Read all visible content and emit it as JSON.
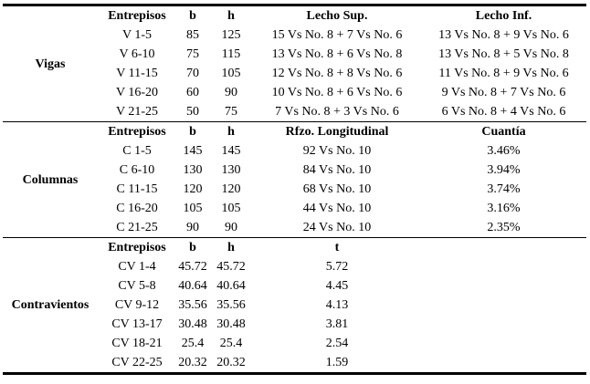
{
  "sections": [
    {
      "name": "Vigas",
      "headers": [
        "Entrepisos",
        "b",
        "h",
        "Lecho Sup.",
        "Lecho Inf."
      ],
      "rows": [
        [
          "V 1-5",
          "85",
          "125",
          "15 Vs No. 8 + 7 Vs No. 6",
          "13 Vs No. 8 + 9 Vs No. 6"
        ],
        [
          "V 6-10",
          "75",
          "115",
          "13 Vs No. 8 + 6 Vs No. 8",
          "13 Vs No. 8 + 5 Vs No. 8"
        ],
        [
          "V 11-15",
          "70",
          "105",
          "12 Vs No. 8 + 8 Vs No. 6",
          "11 Vs No. 8 + 9 Vs No. 6"
        ],
        [
          "V 16-20",
          "60",
          "90",
          "10 Vs No. 8 + 6 Vs No. 6",
          "9 Vs No. 8 + 7 Vs No. 6"
        ],
        [
          "V 21-25",
          "50",
          "75",
          "7 Vs No. 8 + 3 Vs No. 6",
          "6 Vs No. 8 + 4 Vs No. 6"
        ]
      ]
    },
    {
      "name": "Columnas",
      "headers": [
        "Entrepisos",
        "b",
        "h",
        "Rfzo. Longitudinal",
        "Cuantía"
      ],
      "rows": [
        [
          "C 1-5",
          "145",
          "145",
          "92 Vs No. 10",
          "3.46%"
        ],
        [
          "C 6-10",
          "130",
          "130",
          "84 Vs No. 10",
          "3.94%"
        ],
        [
          "C 11-15",
          "120",
          "120",
          "68 Vs No. 10",
          "3.74%"
        ],
        [
          "C 16-20",
          "105",
          "105",
          "44 Vs No. 10",
          "3.16%"
        ],
        [
          "C 21-25",
          "90",
          "90",
          "24 Vs No. 10",
          "2.35%"
        ]
      ]
    },
    {
      "name": "Contravientos",
      "headers": [
        "Entrepisos",
        "b",
        "h",
        "t",
        ""
      ],
      "rows": [
        [
          "CV 1-4",
          "45.72",
          "45.72",
          "5.72",
          ""
        ],
        [
          "CV 5-8",
          "40.64",
          "40.64",
          "4.45",
          ""
        ],
        [
          "CV 9-12",
          "35.56",
          "35.56",
          "4.13",
          ""
        ],
        [
          "CV 13-17",
          "30.48",
          "30.48",
          "3.81",
          ""
        ],
        [
          "CV 18-21",
          "25.4",
          "25.4",
          "2.54",
          ""
        ],
        [
          "CV 22-25",
          "20.32",
          "20.32",
          "1.59",
          ""
        ]
      ]
    }
  ]
}
